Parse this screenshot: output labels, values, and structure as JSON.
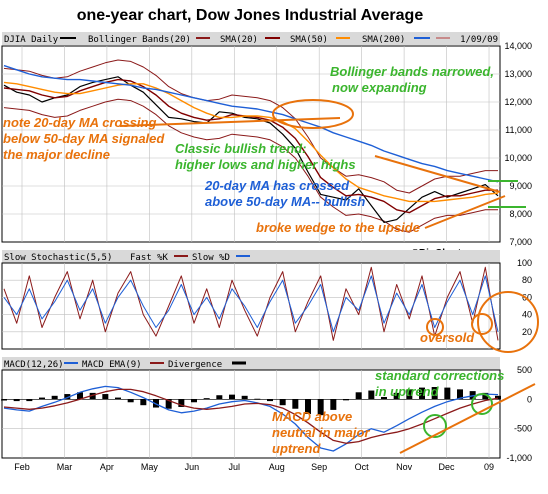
{
  "title": "one-year chart, Dow Jones Industrial Average",
  "colors": {
    "price": "#000000",
    "bb": "#8b1a1a",
    "sma20": "#800000",
    "sma50": "#ff8c00",
    "sma200": "#1e5fd6",
    "sma200b": "#c78a8a",
    "stoch_fast": "#8b1a1a",
    "stoch_slow": "#1e5fd6",
    "macd": "#1e5fd6",
    "macd_ema": "#8b1a1a",
    "divergence": "#000000",
    "note_orange": "#e8720c",
    "note_green": "#3bb52e",
    "note_blue": "#1e5fd6",
    "panel_bg": "#ffffff",
    "grid": "#bfbfbf",
    "legend_bg": "#d9d9d9"
  },
  "price_panel": {
    "legend_symbol": "DJIA Daily",
    "legend_items": [
      {
        "label": "Bollinger Bands(20)",
        "color": "#8b1a1a"
      },
      {
        "label": "SMA(20)",
        "color": "#800000"
      },
      {
        "label": "SMA(50)",
        "color": "#ff8c00"
      },
      {
        "label": "SMA(200)",
        "color": "#1e5fd6"
      }
    ],
    "date_label": "1/09/09",
    "watermark": "©BigCharts.com"
  },
  "stoch_panel": {
    "legend": "Slow Stochastic(5,5)",
    "legend_fast": "Fast %K",
    "legend_slow": "Slow %D"
  },
  "macd_panel": {
    "legend": "MACD(12,26)",
    "legend_ema": "MACD EMA(9)",
    "legend_div": "Divergence"
  },
  "annotations": {
    "bb_note": [
      "Bollinger bands narrowed,",
      "now expanding"
    ],
    "ma_note": [
      "note 20-day MA crossing",
      "below 50-day MA signaled",
      "the major decline"
    ],
    "trend_note": [
      "Classic bullish trend:",
      "higher lows and higher highs"
    ],
    "cross_note": [
      "20-day MA has crossed",
      "above 50-day MA-- bullish"
    ],
    "wedge_note": "broke wedge to the upside",
    "oversold_note": "oversold",
    "std_note": [
      "standard corrections",
      "in uptrend"
    ],
    "macd_note": [
      "MACD above",
      "neutral in major",
      "uptrend"
    ]
  },
  "chart_data": [
    {
      "type": "line",
      "title": "one-year chart, Dow Jones Industrial Average",
      "months": [
        "Feb",
        "Mar",
        "Apr",
        "May",
        "Jun",
        "Jul",
        "Aug",
        "Sep",
        "Oct",
        "Nov",
        "Dec",
        "09"
      ],
      "y_ticks": [
        7000,
        8000,
        9000,
        10000,
        11000,
        12000,
        13000,
        14000
      ],
      "ylim": [
        7000,
        14000
      ],
      "grid": true,
      "series": [
        {
          "name": "DJIA Daily",
          "values": [
            12600,
            12350,
            12250,
            12000,
            12150,
            12250,
            12550,
            12700,
            12800,
            12900,
            12600,
            12350,
            11900,
            11450,
            11400,
            11300,
            11250,
            11650,
            11600,
            11450,
            11400,
            11250,
            10850,
            10350,
            9500,
            8700,
            8600,
            8500,
            8900,
            8300,
            7700,
            7800,
            8200,
            8600,
            8800,
            8600,
            8750,
            8900,
            9050,
            8650
          ]
        },
        {
          "name": "SMA(20)",
          "values": [
            12500,
            12450,
            12400,
            12250,
            12150,
            12200,
            12400,
            12550,
            12700,
            12800,
            12750,
            12550,
            12250,
            11850,
            11600,
            11450,
            11350,
            11400,
            11550,
            11500,
            11450,
            11350,
            11100,
            10700,
            10050,
            9300,
            8950,
            8650,
            8700,
            8600,
            8450,
            8150,
            8050,
            8300,
            8550,
            8650,
            8650,
            8750,
            8850,
            8850
          ]
        },
        {
          "name": "SMA(50)",
          "values": [
            12700,
            12650,
            12550,
            12450,
            12350,
            12300,
            12300,
            12400,
            12500,
            12600,
            12650,
            12650,
            12500,
            12300,
            12050,
            11800,
            11600,
            11450,
            11450,
            11500,
            11500,
            11450,
            11300,
            11050,
            10600,
            10100,
            9650,
            9250,
            8950,
            8800,
            8650,
            8550,
            8450,
            8450,
            8450,
            8500,
            8550,
            8600,
            8700,
            8750
          ]
        },
        {
          "name": "SMA(200)",
          "values": [
            13300,
            13150,
            13000,
            12900,
            12850,
            12800,
            12800,
            12750,
            12700,
            12650,
            12600,
            12500,
            12450,
            12350,
            12250,
            12150,
            12050,
            11950,
            11850,
            11800,
            11750,
            11650,
            11550,
            11400,
            11250,
            11100,
            10900,
            10750,
            10600,
            10450,
            10250,
            10100,
            9950,
            9800,
            9700,
            9550,
            9450,
            9350,
            9250,
            9150
          ]
        }
      ]
    },
    {
      "type": "line",
      "title": "",
      "y_ticks": [
        20,
        40,
        60,
        80,
        100
      ],
      "ylim": [
        0,
        100
      ],
      "series": [
        {
          "name": "Fast %K",
          "values": [
            70,
            30,
            85,
            25,
            60,
            90,
            35,
            80,
            20,
            65,
            90,
            40,
            15,
            50,
            85,
            30,
            70,
            25,
            80,
            45,
            15,
            60,
            90,
            20,
            55,
            85,
            10,
            70,
            40,
            95,
            20,
            75,
            35,
            85,
            15,
            60,
            90,
            30,
            95,
            10
          ]
        },
        {
          "name": "Slow %D",
          "values": [
            60,
            40,
            70,
            35,
            55,
            80,
            45,
            70,
            30,
            60,
            80,
            50,
            25,
            45,
            75,
            40,
            60,
            35,
            70,
            50,
            25,
            55,
            80,
            30,
            50,
            75,
            20,
            60,
            45,
            85,
            30,
            65,
            40,
            75,
            25,
            55,
            80,
            40,
            85,
            20
          ]
        }
      ]
    },
    {
      "type": "line",
      "title": "",
      "y_ticks": [
        -1000,
        -500,
        0,
        500
      ],
      "ylim": [
        -1000,
        500
      ],
      "series": [
        {
          "name": "MACD(12,26)",
          "values": [
            -150,
            -180,
            -200,
            -120,
            -50,
            30,
            120,
            180,
            220,
            200,
            120,
            30,
            -80,
            -180,
            -230,
            -200,
            -150,
            -80,
            -40,
            -20,
            -60,
            -120,
            -250,
            -420,
            -650,
            -830,
            -880,
            -760,
            -600,
            -500,
            -560,
            -450,
            -330,
            -220,
            -120,
            -40,
            20,
            60,
            90,
            80
          ]
        },
        {
          "name": "MACD EMA(9)",
          "values": [
            -130,
            -150,
            -170,
            -150,
            -110,
            -60,
            0,
            70,
            130,
            170,
            170,
            130,
            60,
            -20,
            -100,
            -150,
            -170,
            -150,
            -120,
            -80,
            -70,
            -90,
            -150,
            -260,
            -400,
            -560,
            -700,
            -750,
            -720,
            -650,
            -600,
            -560,
            -500,
            -420,
            -330,
            -240,
            -150,
            -80,
            -20,
            20
          ]
        }
      ]
    }
  ]
}
